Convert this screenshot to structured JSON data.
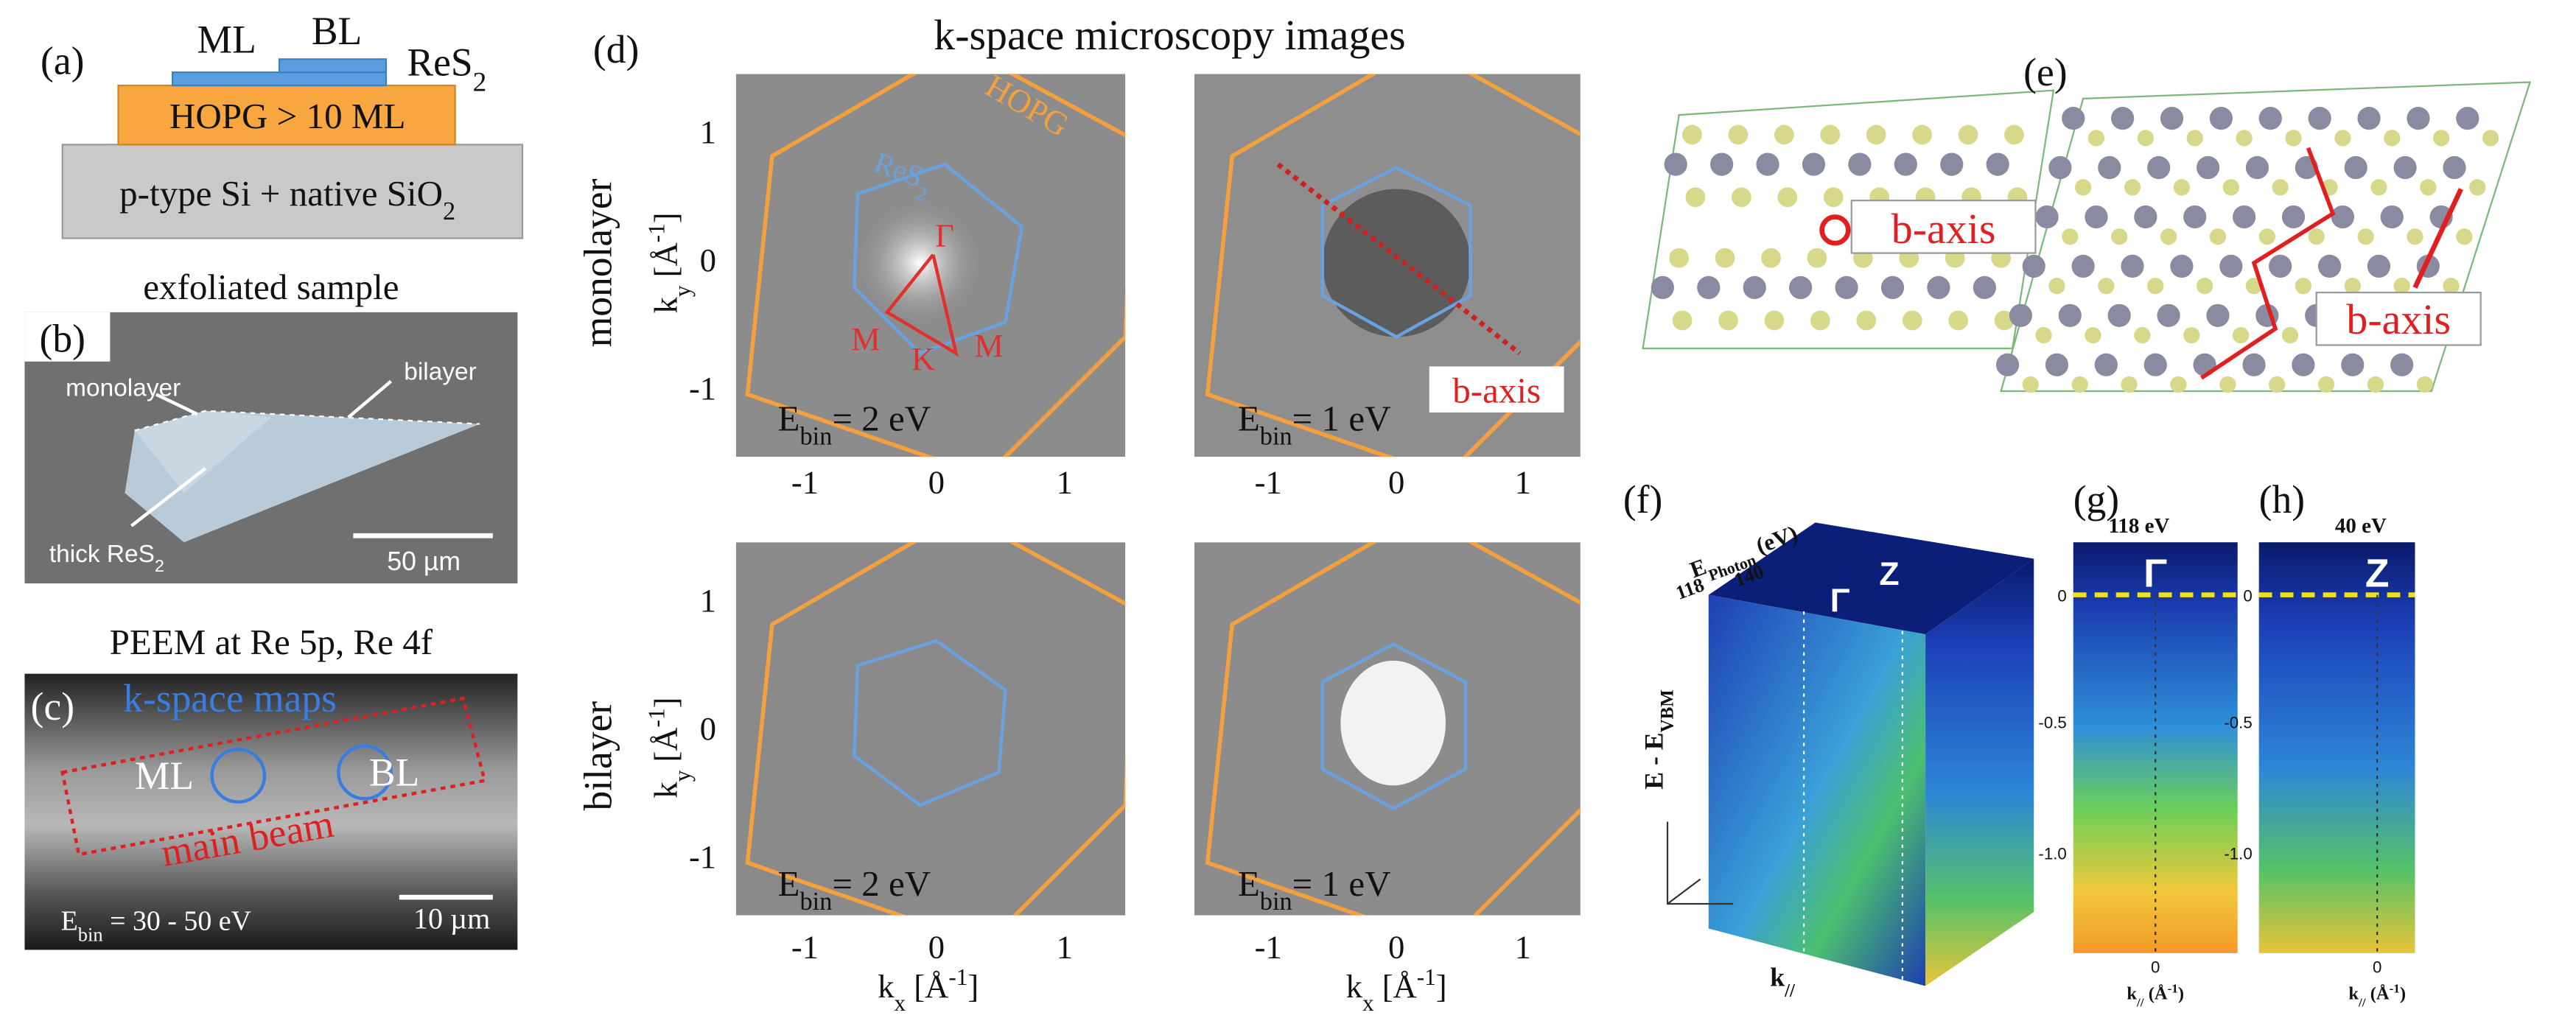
{
  "panel_a": {
    "label": "(a)",
    "ml": "ML",
    "bl": "BL",
    "res2": {
      "main": "ReS",
      "sub": "2"
    },
    "hopg": "HOPG > 10 ML",
    "substrate": {
      "main": "p-type Si + native SiO",
      "sub": "2"
    }
  },
  "panel_b": {
    "label": "(b)",
    "title": "exfoliated sample",
    "monolayer": "monolayer",
    "bilayer": "bilayer",
    "thick": {
      "main": "thick ReS",
      "sub": "2"
    },
    "scale": "50 µm"
  },
  "panel_c": {
    "label": "(c)",
    "title": "PEEM at Re 5p, Re 4f",
    "kmaps": "k-space maps",
    "ml": "ML",
    "bl": "BL",
    "beam": "main beam",
    "energy": {
      "main": "E",
      "sub": "bin",
      "rest": " = 30 - 50 eV"
    },
    "scale": "10 µm"
  },
  "panel_d": {
    "label": "(d)",
    "title": "k-space microscopy images",
    "rows": [
      "monolayer",
      "bilayer"
    ],
    "ky": {
      "main": "k",
      "sub": "y",
      "rest": " [Å",
      "sup": "-1",
      "end": "]"
    },
    "kx": {
      "main": "k",
      "sub": "x",
      "rest": " [Å",
      "sup": "-1",
      "end": "]"
    },
    "ticks": [
      "-1",
      "0",
      "1"
    ],
    "hopg": "HOPG",
    "res2": {
      "main": "ReS",
      "sub": "2"
    },
    "points": [
      "Γ",
      "M",
      "K",
      "M"
    ],
    "energies": [
      {
        "main": "E",
        "sub": "bin",
        "rest": "= 2 eV"
      },
      {
        "main": "E",
        "sub": "bin",
        "rest": "= 1 eV"
      }
    ],
    "baxis": "b-axis"
  },
  "panel_e": {
    "label": "(e)",
    "baxis": [
      "b-axis",
      "b-axis"
    ]
  },
  "panel_f": {
    "label": "(f)",
    "photon": {
      "main": "E",
      "sub": "Photon",
      "rest": " (eV)"
    },
    "photon_ticks": [
      "118",
      "140"
    ],
    "gamma": "Γ",
    "z": "Z",
    "energy_axis": {
      "main": "E - E",
      "sub": "VBM"
    },
    "k_axis": {
      "main": "k",
      "sub": "//"
    }
  },
  "panel_g": {
    "label": "(g)",
    "title": "118 eV",
    "point": "Γ",
    "yticks": [
      "0",
      "-0.5",
      "-1.0"
    ],
    "xtick": "0",
    "xlabel": {
      "main": "k",
      "sub": "//",
      "rest": " (Å",
      "sup": "-1",
      "end": ")"
    }
  },
  "panel_h": {
    "label": "(h)",
    "title": "40 eV",
    "point": "Z",
    "yticks": [
      "0",
      "-0.5",
      "-1.0"
    ],
    "xtick": "0",
    "xlabel": {
      "main": "k",
      "sub": "//",
      "rest": " (Å",
      "sup": "-1",
      "end": ")"
    }
  }
}
